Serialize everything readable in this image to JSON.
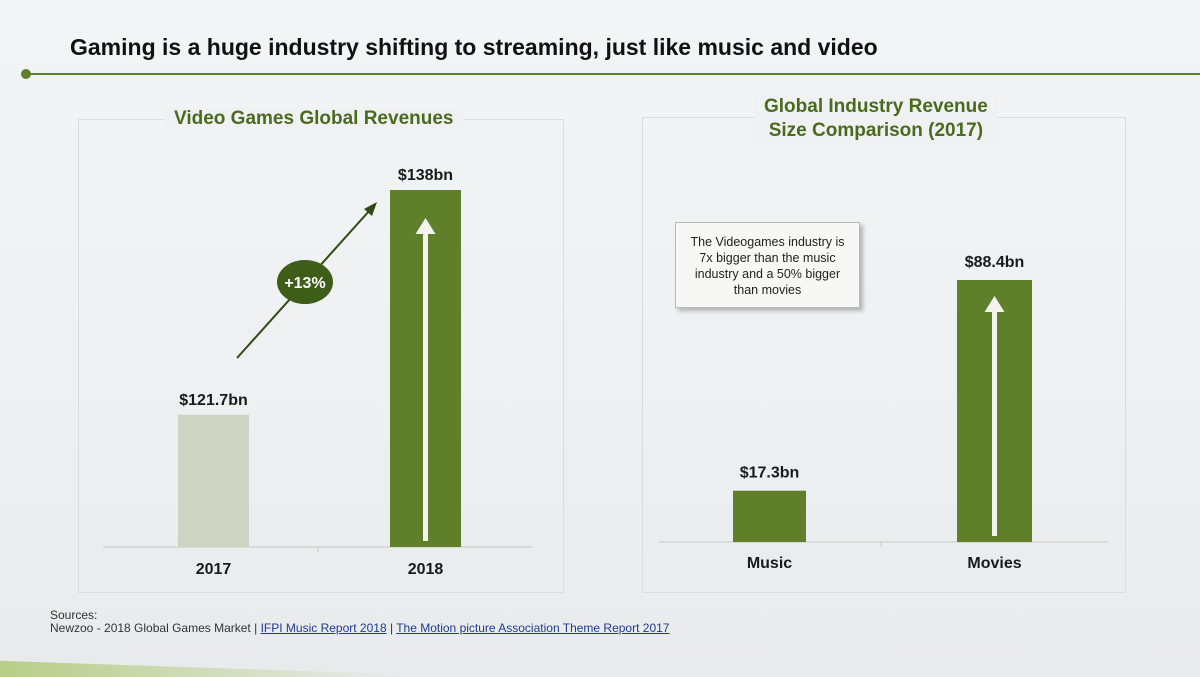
{
  "slide": {
    "title": "Gaming is a huge industry shifting to streaming, just like music and video"
  },
  "left_panel": {
    "title": "Video Games Global Revenues",
    "growth_badge": "+13%"
  },
  "right_panel": {
    "title_line1": "Global Industry Revenue",
    "title_line2": "Size Comparison (2017)",
    "callout": "The Videogames industry is 7x bigger than the music industry and a 50% bigger than movies"
  },
  "sources": {
    "label": "Sources:",
    "items": [
      "Newzoo - 2018 Global Games Market",
      "IFPI Music Report 2018",
      "The Motion picture Association Theme Report 2017"
    ],
    "separator": " | "
  },
  "colors": {
    "accent_green": "#5f7f2a",
    "bar_light": "#cfd4c2",
    "title_green": "#4a6b1e",
    "arrow_white": "#f4f4ef"
  },
  "chart_data": [
    {
      "type": "bar",
      "title": "Video Games Global Revenues",
      "categories": [
        "2017",
        "2018"
      ],
      "values": [
        121.7,
        138
      ],
      "data_labels": [
        "$121.7bn",
        "$138bn"
      ],
      "units": "$bn",
      "annotation": "+13%",
      "grid": false
    },
    {
      "type": "bar",
      "title": "Global Industry Revenue Size Comparison (2017)",
      "categories": [
        "Music",
        "Movies"
      ],
      "values": [
        17.3,
        88.4
      ],
      "data_labels": [
        "$17.3bn",
        "$88.4bn"
      ],
      "units": "$bn",
      "grid": false
    }
  ]
}
